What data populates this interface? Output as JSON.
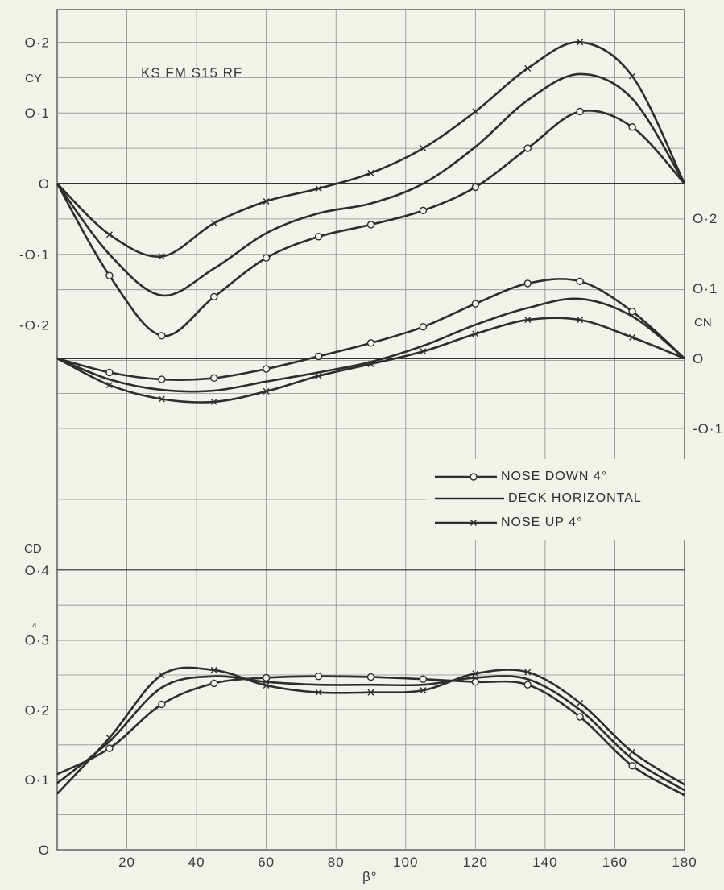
{
  "chart_data": [
    {
      "type": "line",
      "title": "",
      "annotation": "KS FM S15 RF",
      "ylabel": "CY",
      "xlabel": "β°",
      "xlim": [
        0,
        180
      ],
      "ylim": [
        -0.25,
        0.25
      ],
      "y_tick_labels": [
        "O·2",
        "O·1",
        "O",
        "-O·1",
        "-O·2"
      ],
      "series": [
        {
          "name": "NOSE DOWN 4°",
          "marker": "circle",
          "x": [
            0,
            15,
            30,
            45,
            60,
            75,
            90,
            105,
            120,
            135,
            150,
            165,
            180
          ],
          "y": [
            0,
            -0.13,
            -0.215,
            -0.16,
            -0.105,
            -0.075,
            -0.058,
            -0.038,
            -0.005,
            0.05,
            0.102,
            0.08,
            0
          ]
        },
        {
          "name": "DECK HORIZONTAL",
          "marker": "none",
          "x": [
            0,
            15,
            30,
            45,
            60,
            75,
            90,
            105,
            120,
            135,
            150,
            165,
            180
          ],
          "y": [
            0,
            -0.1,
            -0.158,
            -0.12,
            -0.07,
            -0.042,
            -0.028,
            0,
            0.052,
            0.118,
            0.155,
            0.12,
            0
          ]
        },
        {
          "name": "NOSE UP 4°",
          "marker": "cross",
          "x": [
            0,
            15,
            30,
            45,
            60,
            75,
            90,
            105,
            120,
            135,
            150,
            165,
            180
          ],
          "y": [
            0,
            -0.072,
            -0.103,
            -0.056,
            -0.025,
            -0.007,
            0.015,
            0.05,
            0.102,
            0.163,
            0.2,
            0.152,
            0
          ]
        }
      ]
    },
    {
      "type": "line",
      "title": "",
      "ylabel": "CN",
      "xlabel": "β°",
      "xlim": [
        0,
        180
      ],
      "ylim": [
        -0.1,
        0.2
      ],
      "y_tick_labels": [
        "O·2",
        "O·1",
        "O",
        "-O·1"
      ],
      "series": [
        {
          "name": "NOSE DOWN 4°",
          "marker": "circle",
          "x": [
            0,
            15,
            30,
            45,
            60,
            75,
            90,
            105,
            120,
            135,
            150,
            165,
            180
          ],
          "y": [
            0,
            -0.02,
            -0.03,
            -0.028,
            -0.015,
            0.003,
            0.022,
            0.045,
            0.078,
            0.107,
            0.11,
            0.067,
            0
          ]
        },
        {
          "name": "DECK HORIZONTAL",
          "marker": "none",
          "x": [
            0,
            15,
            30,
            45,
            60,
            75,
            90,
            105,
            120,
            135,
            150,
            165,
            180
          ],
          "y": [
            0,
            -0.03,
            -0.045,
            -0.046,
            -0.033,
            -0.02,
            -0.005,
            0.018,
            0.048,
            0.072,
            0.085,
            0.06,
            0
          ]
        },
        {
          "name": "NOSE UP 4°",
          "marker": "cross",
          "x": [
            0,
            15,
            30,
            45,
            60,
            75,
            90,
            105,
            120,
            135,
            150,
            165,
            180
          ],
          "y": [
            0,
            -0.038,
            -0.058,
            -0.062,
            -0.047,
            -0.025,
            -0.008,
            0.01,
            0.035,
            0.055,
            0.055,
            0.03,
            0
          ]
        }
      ]
    },
    {
      "type": "line",
      "title": "",
      "ylabel": "CD",
      "xlabel": "β°",
      "xlim": [
        0,
        180
      ],
      "ylim": [
        0,
        0.4
      ],
      "x_tick_labels": [
        "20",
        "40",
        "60",
        "80",
        "100",
        "120",
        "140",
        "160",
        "180"
      ],
      "y_tick_labels": [
        "O·4",
        "O·3",
        "O·2",
        "O·1",
        "O"
      ],
      "series": [
        {
          "name": "NOSE DOWN 4°",
          "marker": "circle",
          "x": [
            0,
            15,
            30,
            45,
            60,
            75,
            90,
            105,
            120,
            135,
            150,
            165,
            180
          ],
          "y": [
            0.108,
            0.145,
            0.208,
            0.238,
            0.246,
            0.248,
            0.247,
            0.244,
            0.24,
            0.236,
            0.19,
            0.12,
            0.078
          ]
        },
        {
          "name": "DECK HORIZONTAL",
          "marker": "none",
          "x": [
            0,
            15,
            30,
            45,
            60,
            75,
            90,
            105,
            120,
            135,
            150,
            165,
            180
          ],
          "y": [
            0.095,
            0.155,
            0.232,
            0.248,
            0.24,
            0.236,
            0.236,
            0.236,
            0.246,
            0.244,
            0.2,
            0.13,
            0.085
          ]
        },
        {
          "name": "NOSE UP 4°",
          "marker": "cross",
          "x": [
            0,
            15,
            30,
            45,
            60,
            75,
            90,
            105,
            120,
            135,
            150,
            165,
            180
          ],
          "y": [
            0.08,
            0.16,
            0.25,
            0.257,
            0.235,
            0.225,
            0.225,
            0.228,
            0.252,
            0.254,
            0.21,
            0.14,
            0.093
          ]
        }
      ]
    }
  ],
  "legend": {
    "position": "right-middle",
    "items": [
      {
        "label": "NOSE DOWN 4°",
        "marker": "circle"
      },
      {
        "label": "DECK HORIZONTAL",
        "marker": "none"
      },
      {
        "label": "NOSE UP 4°",
        "marker": "cross"
      }
    ]
  },
  "x_axis_label": "β°",
  "stray_mark": "4",
  "colors": {
    "background": "#f2f1ea",
    "ink": "#2d2d2d",
    "grid": "#8d8d8d"
  }
}
